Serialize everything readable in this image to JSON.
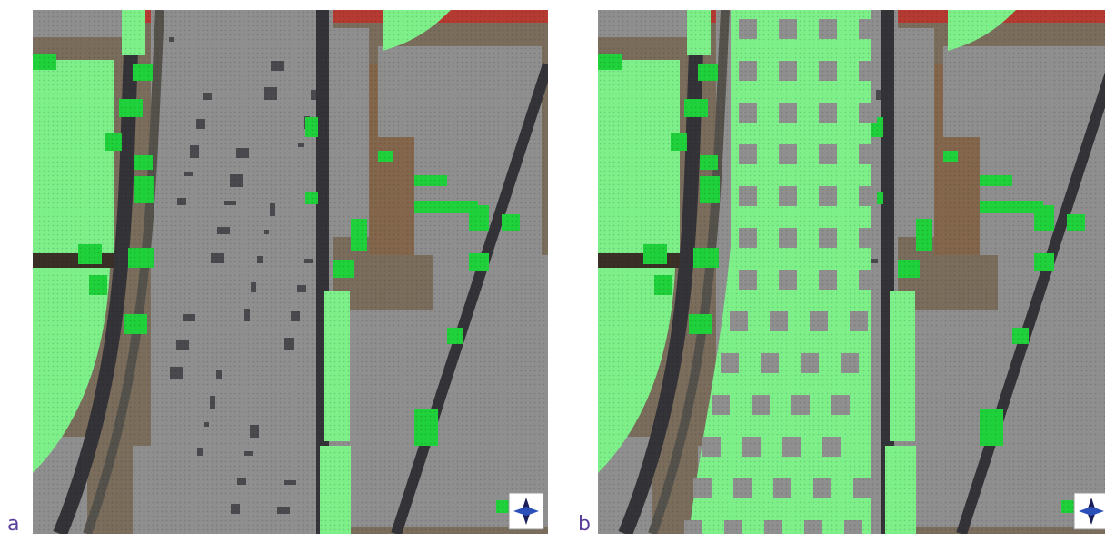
{
  "figure": {
    "panels": [
      {
        "label": "a",
        "scenario": "existing"
      },
      {
        "label": "b",
        "scenario": "with-green-corridor"
      }
    ]
  },
  "legend_colors": {
    "green_space": "#7ef08a",
    "building_grid": "#8f8f8f",
    "bright_green_patch": "#1fd13a",
    "roof_red": "#b53a32",
    "road_dark": "#333338"
  },
  "icons": {
    "north_arrow": "compass-rose-icon"
  }
}
